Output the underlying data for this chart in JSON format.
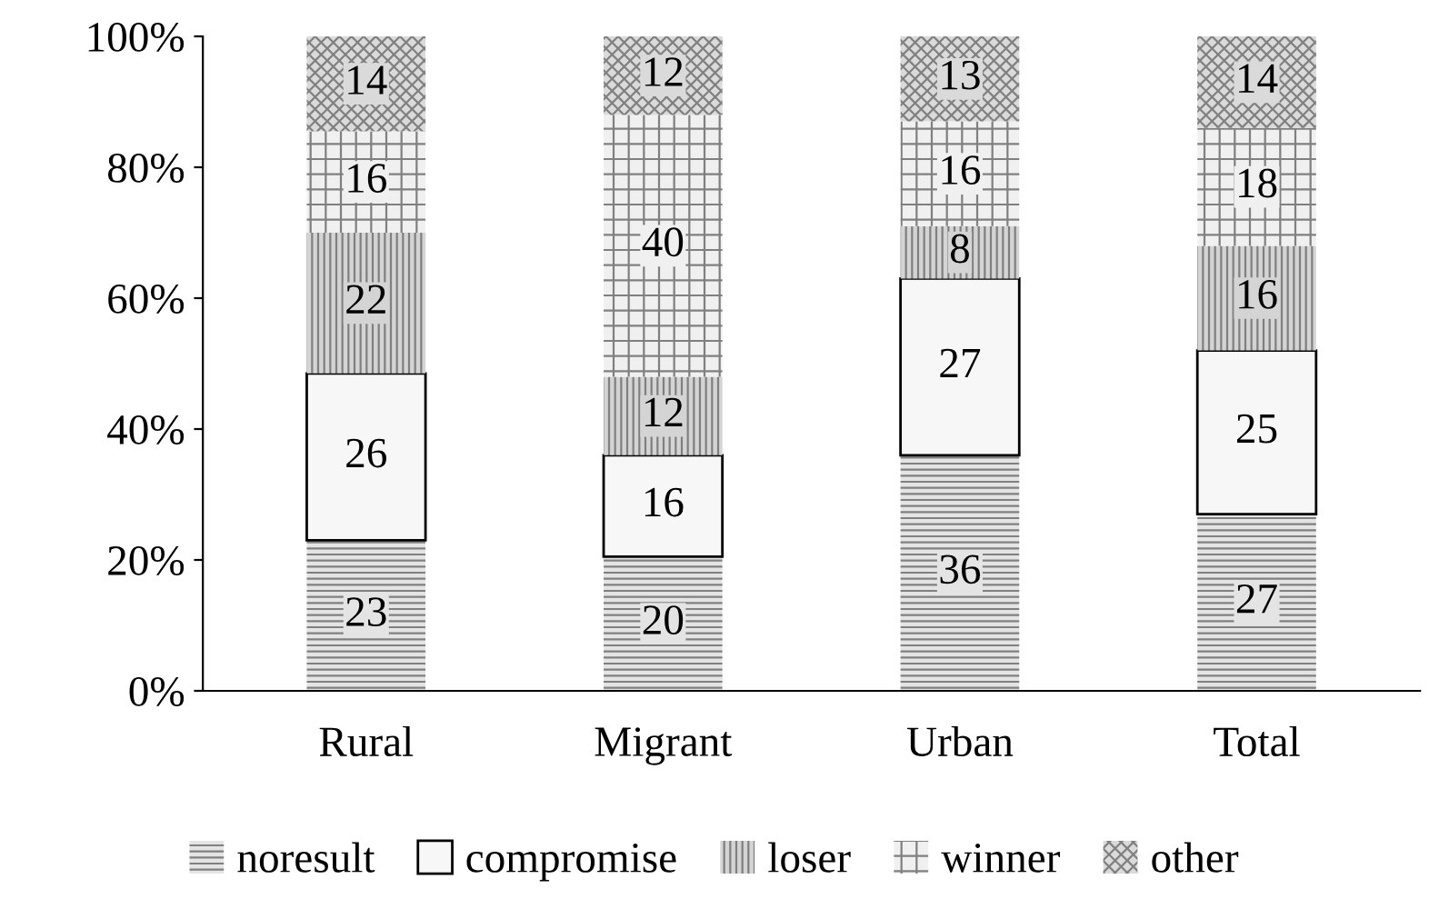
{
  "chart_data": {
    "type": "bar",
    "stacked": true,
    "categories": [
      "Rural",
      "Migrant",
      "Urban",
      "Total"
    ],
    "series": [
      {
        "name": "noresult",
        "color": "#e4e4e4",
        "values": [
          23,
          20.5,
          36,
          27
        ],
        "value_labels": [
          "23",
          "20",
          "36",
          "27"
        ]
      },
      {
        "name": "compromise",
        "color": "#f7f7f7",
        "values": [
          25.5,
          15.5,
          27,
          25
        ],
        "value_labels": [
          "26",
          "16",
          "27",
          "25"
        ]
      },
      {
        "name": "loser",
        "color": "#d4d4d4",
        "values": [
          21.5,
          12,
          8,
          16
        ],
        "value_labels": [
          "22",
          "12",
          "8",
          "16"
        ]
      },
      {
        "name": "winner",
        "color": "#f0f0f0",
        "values": [
          15.5,
          40,
          16,
          18
        ],
        "value_labels": [
          "16",
          "40",
          "16",
          "18"
        ]
      },
      {
        "name": "other",
        "color": "#dadada",
        "values": [
          14.5,
          12,
          13,
          14
        ],
        "value_labels": [
          "14",
          "12",
          "13",
          "14"
        ]
      }
    ],
    "ylim": [
      0,
      100
    ],
    "yticks": [
      {
        "value": 0,
        "label": "0%"
      },
      {
        "value": 20,
        "label": "20%"
      },
      {
        "value": 40,
        "label": "40%"
      },
      {
        "value": 60,
        "label": "60%"
      },
      {
        "value": 80,
        "label": "80%"
      },
      {
        "value": 100,
        "label": "100%"
      }
    ],
    "grid": false,
    "legend": "bottom"
  }
}
